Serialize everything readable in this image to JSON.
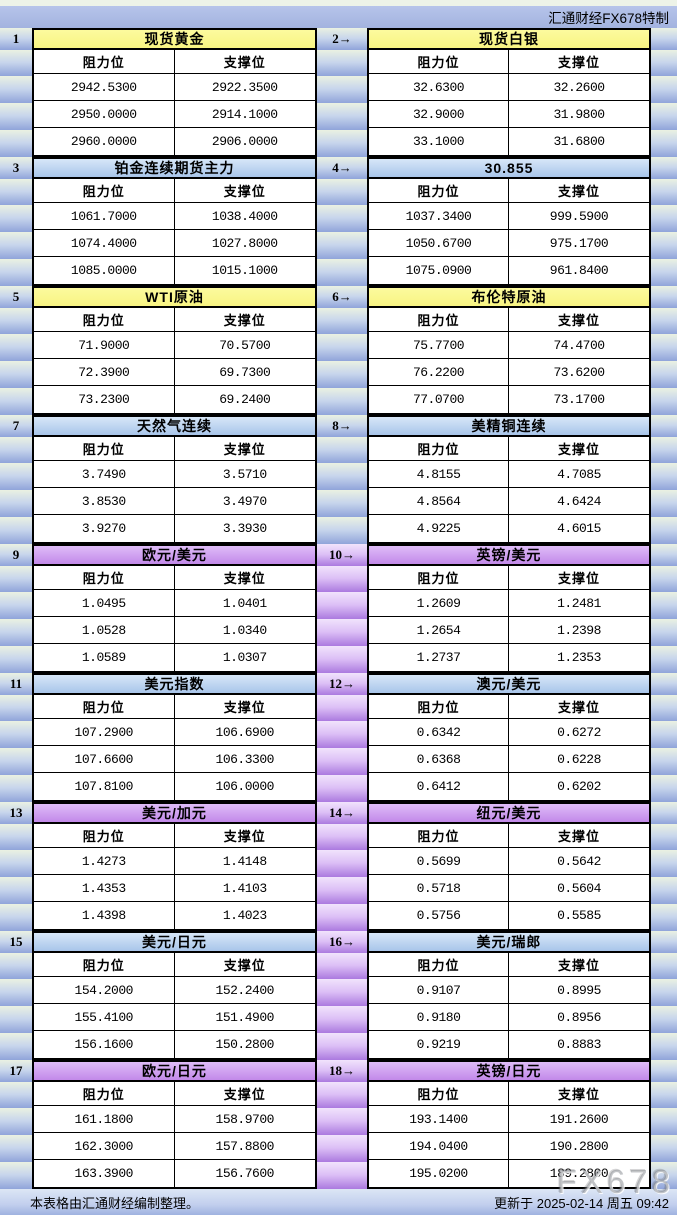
{
  "header": {
    "brand": "汇通财经FX678特制"
  },
  "watermark": "FX678",
  "footer": {
    "note": "本表格由汇通财经编制整理。",
    "updated": "更新于 2025-02-14 周五 09:42"
  },
  "col_headers": {
    "resistance": "阻力位",
    "support": "支撑位"
  },
  "palette": {
    "title_yellow": "#F8F482",
    "title_blue": "#A8C5EA",
    "title_purple": "#C289E9",
    "margin_gradient_top": "#EAF1E2",
    "margin_gradient_bottom": "#90A4DA",
    "strip_purple_top": "#F1E3FC",
    "strip_purple_bottom": "#AB7ADF",
    "header_band": "#A9B8E2",
    "page_background": "#B3C0E8",
    "cell_background": "#FFFFFF"
  },
  "sections": [
    {
      "left_label": "1",
      "right_label": "2→",
      "strip": "blue",
      "left": {
        "title": "现货黄金",
        "style": "yellow",
        "rows": [
          [
            "2942.5300",
            "2922.3500"
          ],
          [
            "2950.0000",
            "2914.1000"
          ],
          [
            "2960.0000",
            "2906.0000"
          ]
        ]
      },
      "right": {
        "title": "现货白银",
        "style": "yellow",
        "rows": [
          [
            "32.6300",
            "32.2600"
          ],
          [
            "32.9000",
            "31.9800"
          ],
          [
            "33.1000",
            "31.6800"
          ]
        ]
      }
    },
    {
      "left_label": "3",
      "right_label": "4→",
      "strip": "blue",
      "left": {
        "title": "铂金连续期货主力",
        "style": "blue",
        "rows": [
          [
            "1061.7000",
            "1038.4000"
          ],
          [
            "1074.4000",
            "1027.8000"
          ],
          [
            "1085.0000",
            "1015.1000"
          ]
        ]
      },
      "right": {
        "title": "30.855",
        "style": "blue",
        "rows": [
          [
            "1037.3400",
            "999.5900"
          ],
          [
            "1050.6700",
            "975.1700"
          ],
          [
            "1075.0900",
            "961.8400"
          ]
        ]
      }
    },
    {
      "left_label": "5",
      "right_label": "6→",
      "strip": "blue",
      "left": {
        "title": "WTI原油",
        "style": "yellow",
        "rows": [
          [
            "71.9000",
            "70.5700"
          ],
          [
            "72.3900",
            "69.7300"
          ],
          [
            "73.2300",
            "69.2400"
          ]
        ]
      },
      "right": {
        "title": "布伦特原油",
        "style": "yellow",
        "rows": [
          [
            "75.7700",
            "74.4700"
          ],
          [
            "76.2200",
            "73.6200"
          ],
          [
            "77.0700",
            "73.1700"
          ]
        ]
      }
    },
    {
      "left_label": "7",
      "right_label": "8→",
      "strip": "blue",
      "left": {
        "title": "天然气连续",
        "style": "blue",
        "rows": [
          [
            "3.7490",
            "3.5710"
          ],
          [
            "3.8530",
            "3.4970"
          ],
          [
            "3.9270",
            "3.3930"
          ]
        ]
      },
      "right": {
        "title": "美精铜连续",
        "style": "blue",
        "rows": [
          [
            "4.8155",
            "4.7085"
          ],
          [
            "4.8564",
            "4.6424"
          ],
          [
            "4.9225",
            "4.6015"
          ]
        ]
      }
    },
    {
      "left_label": "9",
      "right_label": "10→",
      "strip": "purple",
      "left": {
        "title": "欧元/美元",
        "style": "purple",
        "rows": [
          [
            "1.0495",
            "1.0401"
          ],
          [
            "1.0528",
            "1.0340"
          ],
          [
            "1.0589",
            "1.0307"
          ]
        ]
      },
      "right": {
        "title": "英镑/美元",
        "style": "purple",
        "rows": [
          [
            "1.2609",
            "1.2481"
          ],
          [
            "1.2654",
            "1.2398"
          ],
          [
            "1.2737",
            "1.2353"
          ]
        ]
      }
    },
    {
      "left_label": "11",
      "right_label": "12→",
      "strip": "purple",
      "left": {
        "title": "美元指数",
        "style": "blue",
        "rows": [
          [
            "107.2900",
            "106.6900"
          ],
          [
            "107.6600",
            "106.3300"
          ],
          [
            "107.8100",
            "106.0000"
          ]
        ]
      },
      "right": {
        "title": "澳元/美元",
        "style": "blue",
        "rows": [
          [
            "0.6342",
            "0.6272"
          ],
          [
            "0.6368",
            "0.6228"
          ],
          [
            "0.6412",
            "0.6202"
          ]
        ]
      }
    },
    {
      "left_label": "13",
      "right_label": "14→",
      "strip": "purple",
      "left": {
        "title": "美元/加元",
        "style": "purple",
        "rows": [
          [
            "1.4273",
            "1.4148"
          ],
          [
            "1.4353",
            "1.4103"
          ],
          [
            "1.4398",
            "1.4023"
          ]
        ]
      },
      "right": {
        "title": "纽元/美元",
        "style": "purple",
        "rows": [
          [
            "0.5699",
            "0.5642"
          ],
          [
            "0.5718",
            "0.5604"
          ],
          [
            "0.5756",
            "0.5585"
          ]
        ]
      }
    },
    {
      "left_label": "15",
      "right_label": "16→",
      "strip": "purple",
      "left": {
        "title": "美元/日元",
        "style": "blue",
        "rows": [
          [
            "154.2000",
            "152.2400"
          ],
          [
            "155.4100",
            "151.4900"
          ],
          [
            "156.1600",
            "150.2800"
          ]
        ]
      },
      "right": {
        "title": "美元/瑞郎",
        "style": "blue",
        "rows": [
          [
            "0.9107",
            "0.8995"
          ],
          [
            "0.9180",
            "0.8956"
          ],
          [
            "0.9219",
            "0.8883"
          ]
        ]
      }
    },
    {
      "left_label": "17",
      "right_label": "18→",
      "strip": "purple",
      "left": {
        "title": "欧元/日元",
        "style": "purple",
        "rows": [
          [
            "161.1800",
            "158.9700"
          ],
          [
            "162.3000",
            "157.8800"
          ],
          [
            "163.3900",
            "156.7600"
          ]
        ]
      },
      "right": {
        "title": "英镑/日元",
        "style": "purple",
        "rows": [
          [
            "193.1400",
            "191.2600"
          ],
          [
            "194.0400",
            "190.2800"
          ],
          [
            "195.0200",
            "189.2800"
          ]
        ]
      }
    }
  ]
}
